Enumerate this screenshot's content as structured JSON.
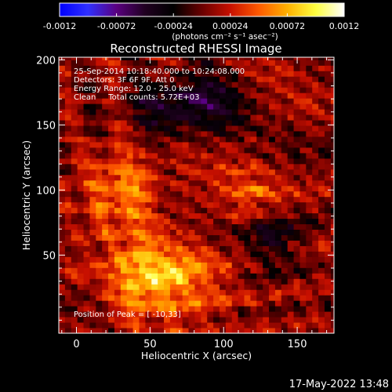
{
  "chart_data": {
    "type": "heatmap",
    "title": "Reconstructed RHESSI Image",
    "xlabel": "Heliocentric X (arcsec)",
    "ylabel": "Heliocentric Y (arcsec)",
    "xlim": [
      -12,
      175
    ],
    "ylim": [
      -10,
      202
    ],
    "x_ticks": [
      0,
      50,
      100,
      150
    ],
    "y_ticks": [
      50,
      100,
      150,
      200
    ],
    "colorbar": {
      "range": [
        -0.0012,
        0.0012
      ],
      "ticks": [
        "-0.0012",
        "-0.00072",
        "-0.00024",
        "0.00024",
        "0.00072",
        "0.0012"
      ],
      "label": "(photons cm⁻² s⁻¹ asec⁻²)",
      "colormap": [
        "#0000ff",
        "#3030ff",
        "#5a0080",
        "#200020",
        "#000000",
        "#6a0000",
        "#c81000",
        "#ff5a00",
        "#ffb000",
        "#ffff40",
        "#ffffff"
      ]
    },
    "annotations": [
      "25-Sep-2014 10:18:40.000 to 10:24:08.000",
      "Detectors: 3F 6F 9F, Att 0",
      "Energy Range: 12.0 - 25.0 keV",
      "Clean     Total counts: 5.72E+03"
    ],
    "peak_label": "Position of Peak = [ -10,33]",
    "peak_position": [
      -10,
      33
    ],
    "grid": false
  },
  "footer": {
    "datetime": "17-May-2022 13:48"
  }
}
